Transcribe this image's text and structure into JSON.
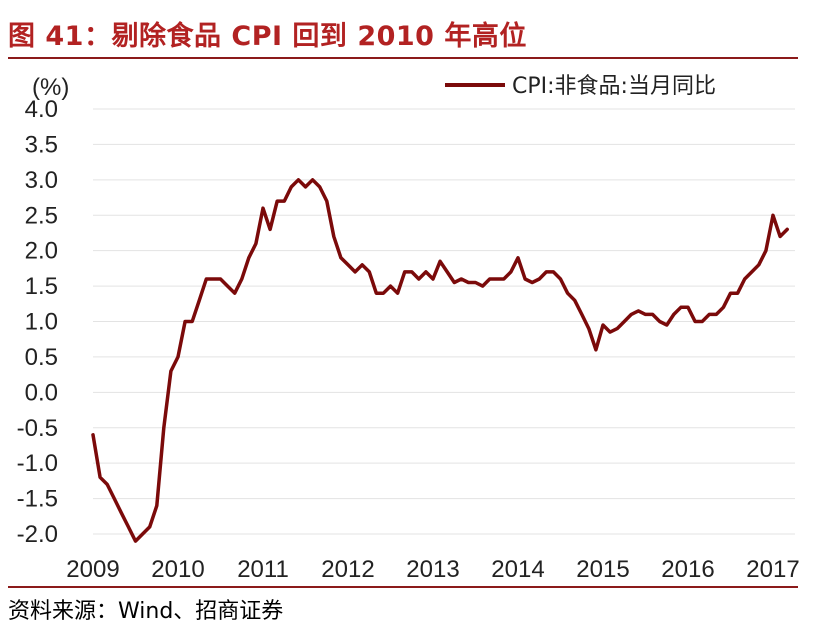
{
  "figure": {
    "title": "图 41：剔除食品 CPI 回到 2010 年高位",
    "source": "资料来源：Wind、招商证券"
  },
  "chart_data": {
    "type": "line",
    "ylabel": "(%)",
    "xlabel": "",
    "ylim": [
      -2.0,
      4.0
    ],
    "yticks": [
      "4.0",
      "3.5",
      "3.0",
      "2.5",
      "2.0",
      "1.5",
      "1.0",
      "0.5",
      "0.0",
      "-0.5",
      "-1.0",
      "-1.5",
      "-2.0"
    ],
    "xticks": [
      "2009",
      "2010",
      "2011",
      "2012",
      "2013",
      "2014",
      "2015",
      "2016",
      "2017"
    ],
    "grid": "horizontal",
    "legend_position": "top-right",
    "series": [
      {
        "name": "CPI:非食品:当月同比",
        "color": "#7B0A0A",
        "x": [
          "2009-01",
          "2009-02",
          "2009-03",
          "2009-04",
          "2009-05",
          "2009-06",
          "2009-07",
          "2009-08",
          "2009-09",
          "2009-10",
          "2009-11",
          "2009-12",
          "2010-01",
          "2010-02",
          "2010-03",
          "2010-04",
          "2010-05",
          "2010-06",
          "2010-07",
          "2010-08",
          "2010-09",
          "2010-10",
          "2010-11",
          "2010-12",
          "2011-01",
          "2011-02",
          "2011-03",
          "2011-04",
          "2011-05",
          "2011-06",
          "2011-07",
          "2011-08",
          "2011-09",
          "2011-10",
          "2011-11",
          "2011-12",
          "2012-01",
          "2012-02",
          "2012-03",
          "2012-04",
          "2012-05",
          "2012-06",
          "2012-07",
          "2012-08",
          "2012-09",
          "2012-10",
          "2012-11",
          "2012-12",
          "2013-01",
          "2013-02",
          "2013-03",
          "2013-04",
          "2013-05",
          "2013-06",
          "2013-07",
          "2013-08",
          "2013-09",
          "2013-10",
          "2013-11",
          "2013-12",
          "2014-01",
          "2014-02",
          "2014-03",
          "2014-04",
          "2014-05",
          "2014-06",
          "2014-07",
          "2014-08",
          "2014-09",
          "2014-10",
          "2014-11",
          "2014-12",
          "2015-01",
          "2015-02",
          "2015-03",
          "2015-04",
          "2015-05",
          "2015-06",
          "2015-07",
          "2015-08",
          "2015-09",
          "2015-10",
          "2015-11",
          "2015-12",
          "2016-01",
          "2016-02",
          "2016-03",
          "2016-04",
          "2016-05",
          "2016-06",
          "2016-07",
          "2016-08",
          "2016-09",
          "2016-10",
          "2016-11",
          "2016-12",
          "2017-01",
          "2017-02",
          "2017-03"
        ],
        "values": [
          -0.6,
          -1.2,
          -1.3,
          -1.5,
          -1.7,
          -1.9,
          -2.1,
          -2.0,
          -1.9,
          -1.6,
          -0.5,
          0.3,
          0.5,
          1.0,
          1.0,
          1.3,
          1.6,
          1.6,
          1.6,
          1.5,
          1.4,
          1.6,
          1.9,
          2.1,
          2.6,
          2.3,
          2.7,
          2.7,
          2.9,
          3.0,
          2.9,
          3.0,
          2.9,
          2.7,
          2.2,
          1.9,
          1.8,
          1.7,
          1.8,
          1.7,
          1.4,
          1.4,
          1.5,
          1.4,
          1.7,
          1.7,
          1.6,
          1.7,
          1.6,
          1.85,
          1.7,
          1.55,
          1.6,
          1.55,
          1.55,
          1.5,
          1.6,
          1.6,
          1.6,
          1.7,
          1.9,
          1.6,
          1.55,
          1.6,
          1.7,
          1.7,
          1.6,
          1.4,
          1.3,
          1.1,
          0.9,
          0.6,
          0.95,
          0.85,
          0.9,
          1.0,
          1.1,
          1.15,
          1.1,
          1.1,
          1.0,
          0.95,
          1.1,
          1.2,
          1.2,
          1.0,
          1.0,
          1.1,
          1.1,
          1.2,
          1.4,
          1.4,
          1.6,
          1.7,
          1.8,
          2.0,
          2.5,
          2.2,
          2.3
        ]
      }
    ]
  }
}
